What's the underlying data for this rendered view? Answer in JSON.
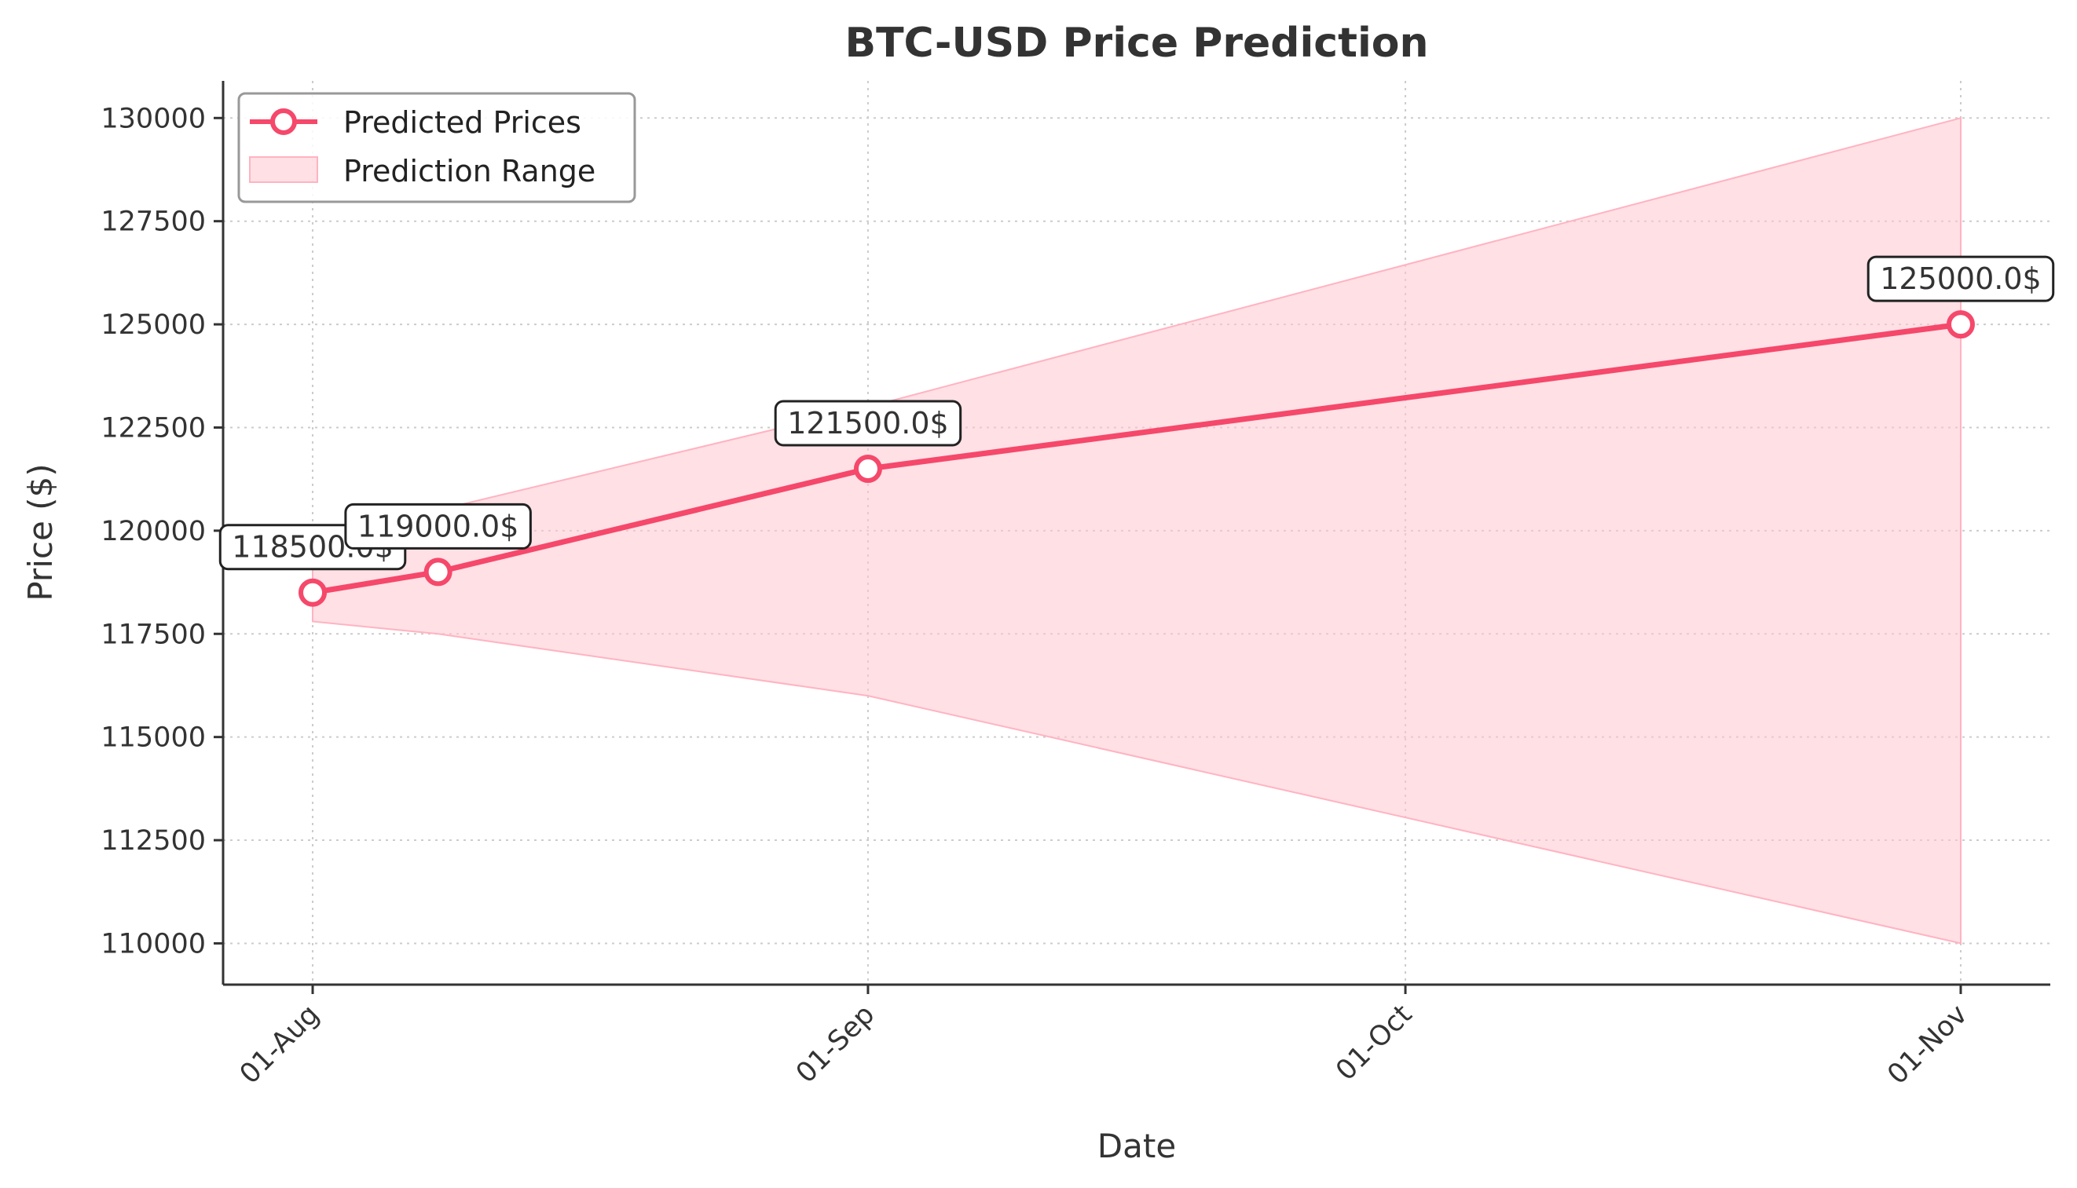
{
  "chart_data": {
    "type": "line",
    "title": "BTC-USD Price Prediction",
    "xlabel": "Date",
    "ylabel": "Price ($)",
    "x_ticks": [
      {
        "date": "2025-08-01",
        "label": "01-Aug"
      },
      {
        "date": "2025-09-01",
        "label": "01-Sep"
      },
      {
        "date": "2025-10-01",
        "label": "01-Oct"
      },
      {
        "date": "2025-11-01",
        "label": "01-Nov"
      }
    ],
    "xlim": [
      "2025-07-27",
      "2025-11-06"
    ],
    "ylim": [
      109000,
      130900
    ],
    "y_ticks": [
      110000,
      112500,
      115000,
      117500,
      120000,
      122500,
      125000,
      127500,
      130000
    ],
    "grid": true,
    "legend_position": "top-left",
    "series": [
      {
        "name": "Predicted Prices",
        "kind": "line",
        "color": "#f5486a",
        "points": [
          {
            "x": "2025-08-01",
            "y": 118500
          },
          {
            "x": "2025-08-08",
            "y": 119000
          },
          {
            "x": "2025-09-01",
            "y": 121500
          },
          {
            "x": "2025-11-01",
            "y": 125000
          }
        ]
      },
      {
        "name": "Prediction Range",
        "kind": "band",
        "color": "#ffc7d0",
        "points": [
          {
            "x": "2025-08-01",
            "low": 117800,
            "high": 119200
          },
          {
            "x": "2025-08-08",
            "low": 117500,
            "high": 120500
          },
          {
            "x": "2025-09-01",
            "low": 116000,
            "high": 123000
          },
          {
            "x": "2025-11-01",
            "low": 110000,
            "high": 130000
          }
        ]
      }
    ],
    "annotations": [
      {
        "x": "2025-08-01",
        "y": 118500,
        "text": "118500.0$"
      },
      {
        "x": "2025-08-08",
        "y": 119000,
        "text": "119000.0$"
      },
      {
        "x": "2025-09-01",
        "y": 121500,
        "text": "121500.0$"
      },
      {
        "x": "2025-11-01",
        "y": 125000,
        "text": "125000.0$"
      }
    ]
  }
}
